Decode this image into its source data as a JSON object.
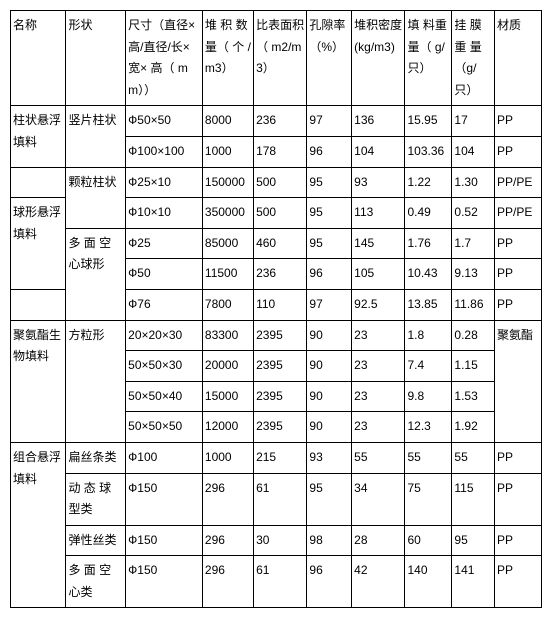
{
  "headers": [
    "名称",
    "形状",
    "尺寸（直径×高/直径/长×宽× 高（ mm））",
    "堆 积 数量（ 个 /m3）",
    "比表面积（ m2/m3）",
    "孔隙率（%）",
    "堆积密度(kg/m3)",
    "填   料重   量（ g/只）",
    "挂   膜重   量（g/只）",
    "材质"
  ],
  "rows": [
    {
      "c0": "柱状悬浮填料",
      "c0rs": 2,
      "c1": "竖片柱状",
      "c1rs": 2,
      "c2": "Ф50×50",
      "c3": "8000",
      "c4": "236",
      "c5": "97",
      "c6": "136",
      "c7": "15.95",
      "c8": "17",
      "c9": "PP"
    },
    {
      "c2": "Ф100×100",
      "c3": "1000",
      "c4": "178",
      "c5": "96",
      "c6": "104",
      "c7": "103.36",
      "c8": "104",
      "c9": "PP"
    },
    {
      "c0": "",
      "c0rs": 1,
      "c1": "颗粒柱状",
      "c1rs": 2,
      "c2": "Ф25×10",
      "c3": "150000",
      "c4": "500",
      "c5": "95",
      "c6": "93",
      "c7": "1.22",
      "c8": "1.30",
      "c9": "PP/PE"
    },
    {
      "c0": "球形悬浮填料",
      "c0rs": 3,
      "c2": "Ф10×10",
      "c3": "350000",
      "c4": "500",
      "c5": "95",
      "c6": "113",
      "c7": "0.49",
      "c8": "0.52",
      "c9": "PP/PE"
    },
    {
      "c1": "多 面 空 心球形",
      "c1rs": 3,
      "c2": "Ф25",
      "c3": "85000",
      "c4": "460",
      "c5": "95",
      "c6": "145",
      "c7": "1.76",
      "c8": "1.7",
      "c9": "PP"
    },
    {
      "c2": "Ф50",
      "c3": "11500",
      "c4": "236",
      "c5": "96",
      "c6": "105",
      "c7": "10.43",
      "c8": "9.13",
      "c9": "PP"
    },
    {
      "c0": "",
      "c0rs": 1,
      "c2": "Ф76",
      "c3": "7800",
      "c4": "110",
      "c5": "97",
      "c6": "92.5",
      "c7": "13.85",
      "c8": "11.86",
      "c9": "PP"
    },
    {
      "c0": "聚氨酯生物填料",
      "c0rs": 4,
      "c1": "方粒形",
      "c1rs": 4,
      "c2": "20×20×30",
      "c3": "83300",
      "c4": "2395",
      "c5": "90",
      "c6": "23",
      "c7": "1.8",
      "c8": "0.28",
      "c9": "聚氨酯",
      "c9rs": 4
    },
    {
      "c2": "50×50×30",
      "c3": "20000",
      "c4": "2395",
      "c5": "90",
      "c6": "23",
      "c7": "7.4",
      "c8": "1.15"
    },
    {
      "c2": "50×50×40",
      "c3": "15000",
      "c4": "2395",
      "c5": "90",
      "c6": "23",
      "c7": "9.8",
      "c8": "1.53"
    },
    {
      "c2": "50×50×50",
      "c3": "12000",
      "c4": "2395",
      "c5": "90",
      "c6": "23",
      "c7": "12.3",
      "c8": "1.92"
    },
    {
      "c0": "组合悬浮填料",
      "c0rs": 4,
      "c1": "扁丝条类",
      "c1rs": 1,
      "c2": "Ф100",
      "c3": "1000",
      "c4": "215",
      "c5": "93",
      "c6": "55",
      "c7": "55",
      "c8": "55",
      "c9": "PP"
    },
    {
      "c1": "动 态 球 型类",
      "c1rs": 1,
      "c2": "Ф150",
      "c3": "296",
      "c4": "61",
      "c5": "95",
      "c6": "34",
      "c7": "75",
      "c8": "115",
      "c9": "PP"
    },
    {
      "c1": "弹性丝类",
      "c1rs": 1,
      "c2": "Ф150",
      "c3": "296",
      "c4": "30",
      "c5": "98",
      "c6": "28",
      "c7": "60",
      "c8": "95",
      "c9": "PP"
    },
    {
      "c1": "多 面 空 心类",
      "c1rs": 1,
      "c2": "Ф150",
      "c3": "296",
      "c4": "61",
      "c5": "96",
      "c6": "42",
      "c7": "140",
      "c8": "141",
      "c9": "PP"
    }
  ]
}
